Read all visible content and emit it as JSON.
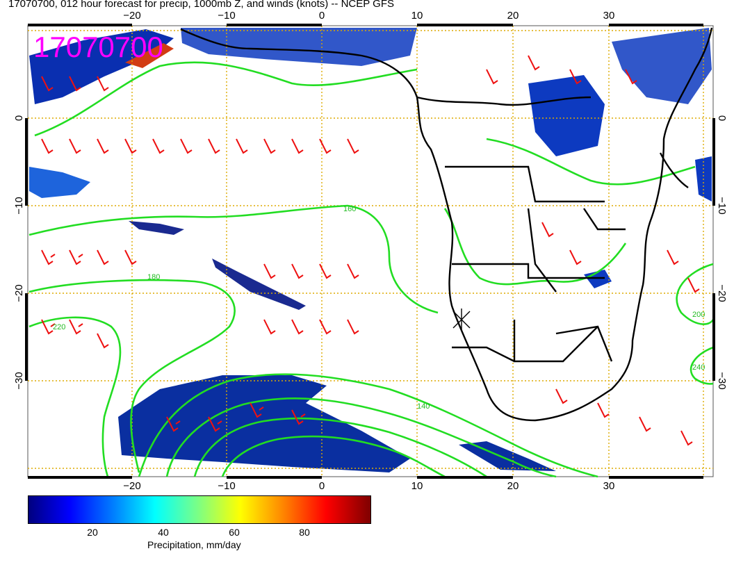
{
  "title": "17070700, 012 hour forecast for precip, 1000mb Z, and winds (knots) -- NCEP GFS",
  "date_stamp": "17070700",
  "x_ticks": [
    "−20",
    "−10",
    "0",
    "10",
    "20",
    "30"
  ],
  "y_ticks": [
    "0",
    "−10",
    "−20",
    "−30"
  ],
  "contour_labels": [
    "140",
    "160",
    "180",
    "200",
    "220",
    "240"
  ],
  "colorbar": {
    "label": "Precipitation, mm/day",
    "ticks": [
      "20",
      "40",
      "60",
      "80"
    ]
  },
  "colors": {
    "contours": "#22dd22",
    "wind_barbs": "#ee1111",
    "date_stamp": "#ff00ff",
    "grid": "#ddaa00",
    "coastlines": "#000000",
    "precip_dark": "#00007f"
  }
}
